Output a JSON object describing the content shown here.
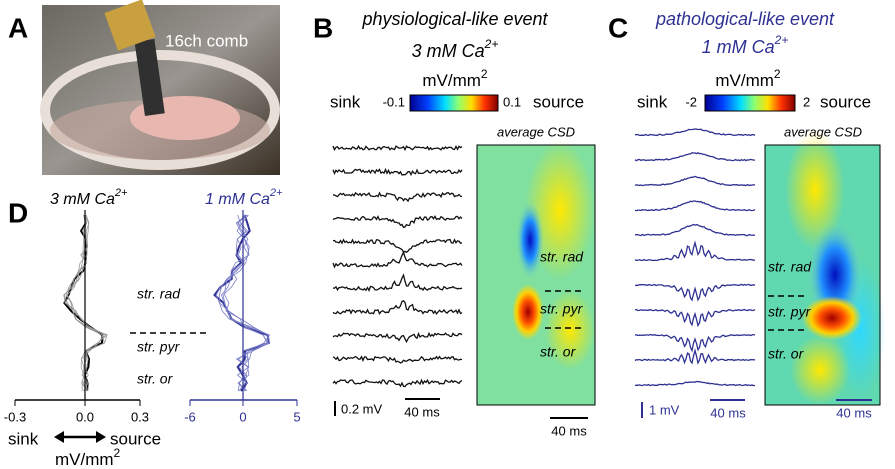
{
  "panels": {
    "A": {
      "label": "A",
      "annotation": "16ch comb"
    },
    "B": {
      "label": "B",
      "title": "physiological-like event",
      "conc": "3 mM Ca",
      "conc_sup": "2+",
      "colorbar": {
        "unit": "mV/mm",
        "unit_sup": "2",
        "left": "sink",
        "min": "-0.1",
        "max": "0.1",
        "right": "source"
      },
      "csd_title": "average CSD",
      "layers": [
        "str. rad",
        "str. pyr",
        "str. or"
      ],
      "scale_voltage": "0.2 mV",
      "scale_time": "40 ms",
      "scale_time_csd": "40 ms"
    },
    "C": {
      "label": "C",
      "title": "pathological-like event",
      "conc": "1 mM Ca",
      "conc_sup": "2+",
      "colorbar": {
        "unit": "mV/mm",
        "unit_sup": "2",
        "left": "sink",
        "min": "-2",
        "max": "2",
        "right": "source"
      },
      "csd_title": "average CSD",
      "layers": [
        "str. rad",
        "str. pyr",
        "str. or"
      ],
      "scale_voltage": "1 mV",
      "scale_time": "40 ms",
      "scale_time_csd": "40 ms"
    },
    "D": {
      "label": "D",
      "left_title": "3 mM Ca",
      "left_sup": "2+",
      "right_title": "1 mM Ca",
      "right_sup": "2+",
      "layers": [
        "str. rad",
        "str. pyr",
        "str. or"
      ],
      "left_ticks": [
        "-0.3",
        "0.0",
        "0.3"
      ],
      "right_ticks": [
        "-6",
        "0",
        "5"
      ],
      "sink": "sink",
      "source": "source",
      "unit": "mV/mm",
      "unit_sup": "2"
    }
  }
}
